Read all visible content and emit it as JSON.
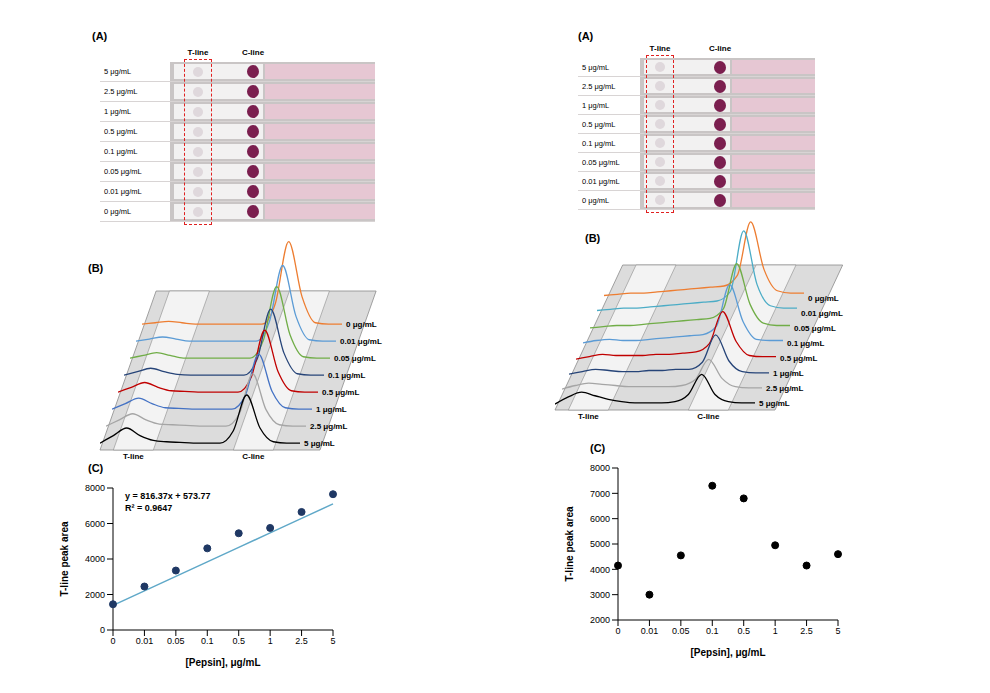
{
  "chart_data": [
    {
      "type": "strip_image",
      "title": "(A)",
      "categories": [
        "5 μg/mL",
        "2.5 μg/mL",
        "1 μg/mL",
        "0.5 μg/mL",
        "0.1 μg/mL",
        "0.05 μg/mL",
        "0.01 μg/mL",
        "0 μg/mL"
      ],
      "annotations": [
        "T-line",
        "C-line"
      ]
    },
    {
      "type": "waterfall",
      "title": "(B)",
      "x": [
        0,
        1,
        2,
        3,
        4,
        5,
        6,
        7,
        8,
        9,
        10,
        11,
        12,
        13,
        14,
        15
      ],
      "xlim": [
        0,
        15
      ],
      "ylim": [
        0,
        80
      ],
      "tick_labels": false,
      "annotations": [
        "T-line",
        "C-line"
      ],
      "series": [
        {
          "name": "0 μg/mL",
          "color": "#ed7d31",
          "values": [
            5,
            6,
            7,
            6,
            5,
            5,
            5,
            5,
            5,
            5,
            20,
            65,
            25,
            6,
            5,
            5
          ]
        },
        {
          "name": "0.01 μg/mL",
          "color": "#5b9bd5",
          "values": [
            5,
            6.5,
            8,
            6.5,
            5,
            5,
            5,
            5,
            5,
            5,
            19,
            60,
            23,
            6,
            5,
            5
          ]
        },
        {
          "name": "0.05 μg/mL",
          "color": "#70ad47",
          "values": [
            5,
            7,
            9,
            7,
            5,
            5,
            5,
            5,
            5,
            5,
            18,
            57,
            22,
            6,
            5,
            5
          ]
        },
        {
          "name": "0.1 μg/mL",
          "color": "#264478",
          "values": [
            5,
            7.5,
            10,
            7.5,
            5.5,
            5,
            5,
            5,
            5,
            5,
            17,
            53,
            21,
            6,
            5,
            5
          ]
        },
        {
          "name": "0.5 μg/mL",
          "color": "#c00000",
          "values": [
            5,
            8.5,
            12,
            8.5,
            6,
            5.5,
            5,
            5,
            5,
            5,
            16,
            50,
            20,
            6,
            5,
            5
          ]
        },
        {
          "name": "1 μg/mL",
          "color": "#4472c4",
          "values": [
            5,
            9,
            13,
            9,
            6,
            5.5,
            5,
            5,
            5,
            5,
            15,
            45,
            18,
            6,
            5,
            5
          ]
        },
        {
          "name": "2.5 μg/mL",
          "color": "#a5a5a5",
          "values": [
            5,
            9.5,
            14,
            9.5,
            6.5,
            6,
            5.5,
            5,
            5,
            5,
            14,
            43,
            17,
            6,
            5,
            5
          ]
        },
        {
          "name": "5 μg/mL",
          "color": "#000000",
          "values": [
            5,
            10.5,
            16,
            10.5,
            7,
            6,
            5.5,
            5,
            5,
            5,
            14,
            40,
            16,
            6,
            5,
            5
          ]
        }
      ]
    },
    {
      "type": "scatter",
      "title": "(C)",
      "categories": [
        "0",
        "0.01",
        "0.05",
        "0.1",
        "0.5",
        "1",
        "2.5",
        "5"
      ],
      "values": [
        1450,
        2450,
        3350,
        4600,
        5450,
        5750,
        6650,
        7650
      ],
      "color": "#1f3864",
      "x_label": "[Pepsin], μg/mL",
      "y_label": "T-line peak area",
      "ylim": [
        0,
        8000
      ],
      "yticks": [
        0,
        2000,
        4000,
        6000,
        8000
      ],
      "trendline": {
        "slope": 816.37,
        "intercept": 573.77,
        "color": "#5fa8c8",
        "equation": "y = 816.37x + 573.77",
        "r_squared_label": "R² = 0.9647"
      }
    },
    {
      "type": "strip_image",
      "title": "(A)",
      "categories": [
        "5 μg/mL",
        "2.5 μg/mL",
        "1 μg/mL",
        "0.5 μg/mL",
        "0.1 μg/mL",
        "0.05 μg/mL",
        "0.01 μg/mL",
        "0 μg/mL"
      ],
      "annotations": [
        "T-line",
        "C-line"
      ]
    },
    {
      "type": "waterfall",
      "title": "(B)",
      "x": [
        0,
        1,
        2,
        3,
        4,
        5,
        6,
        7,
        8,
        9,
        10,
        11,
        12,
        13,
        14,
        15
      ],
      "xlim": [
        0,
        15
      ],
      "ylim": [
        0,
        80
      ],
      "tick_labels": false,
      "annotations": [
        "T-line",
        "C-line"
      ],
      "series": [
        {
          "name": "0 μg/mL",
          "color": "#ed7d31",
          "values": [
            8,
            9,
            10,
            10,
            11,
            12,
            13,
            14,
            15,
            16,
            25,
            70,
            30,
            12,
            10,
            10
          ]
        },
        {
          "name": "0.01 μg/mL",
          "color": "#4bacc6",
          "values": [
            8,
            9,
            10,
            10,
            11,
            12,
            13,
            14,
            15,
            16,
            24,
            75,
            30,
            12,
            10,
            10
          ]
        },
        {
          "name": "0.05 μg/mL",
          "color": "#70ad47",
          "values": [
            6,
            7,
            8,
            8,
            9,
            10,
            11,
            12,
            13,
            14,
            22,
            60,
            26,
            10,
            8,
            8
          ]
        },
        {
          "name": "0.1 μg/mL",
          "color": "#5b9bd5",
          "values": [
            6,
            8,
            9,
            8,
            8,
            9,
            10,
            11,
            12,
            13,
            20,
            55,
            24,
            9,
            8,
            8
          ]
        },
        {
          "name": "0.5 μg/mL",
          "color": "#c00000",
          "values": [
            5,
            7,
            9,
            8,
            8,
            8,
            9,
            9,
            10,
            11,
            18,
            45,
            20,
            8,
            7,
            7
          ]
        },
        {
          "name": "1 μg/mL",
          "color": "#264478",
          "values": [
            5,
            7,
            9,
            8,
            7,
            7,
            8,
            8,
            9,
            9,
            15,
            38,
            16,
            7,
            6,
            6
          ]
        },
        {
          "name": "2.5 μg/mL",
          "color": "#a5a5a5",
          "values": [
            5,
            8,
            10,
            9,
            8,
            7,
            7,
            7,
            7,
            8,
            13,
            30,
            14,
            7,
            6,
            6
          ]
        },
        {
          "name": "5 μg/mL",
          "color": "#000000",
          "values": [
            5,
            11,
            15,
            12,
            9,
            7,
            6,
            6,
            6,
            7,
            13,
            30,
            13,
            7,
            6,
            6
          ]
        }
      ]
    },
    {
      "type": "scatter",
      "title": "(C)",
      "categories": [
        "0",
        "0.01",
        "0.05",
        "0.1",
        "0.5",
        "1",
        "2.5",
        "5"
      ],
      "values": [
        4150,
        3000,
        4550,
        7300,
        6800,
        4950,
        4150,
        4600
      ],
      "color": "#000000",
      "x_label": "[Pepsin], μg/mL",
      "y_label": "T-line peak area",
      "ylim": [
        2000,
        8000
      ],
      "yticks": [
        2000,
        3000,
        4000,
        5000,
        6000,
        7000,
        8000
      ]
    }
  ]
}
